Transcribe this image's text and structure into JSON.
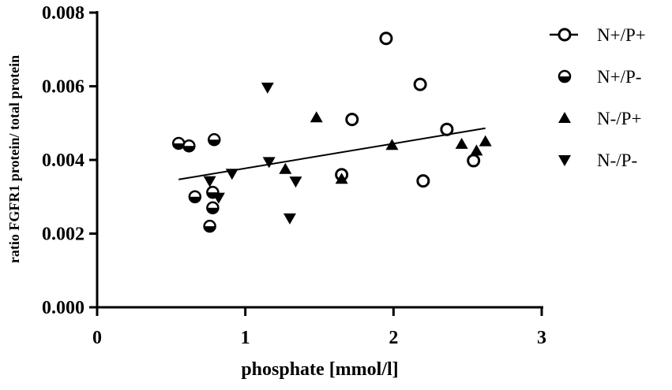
{
  "chart_data": {
    "type": "scatter",
    "xlabel": "phosphate [mmol/l]",
    "ylabel": "ratio FGFR1 protein/ total protein",
    "xlim": [
      0,
      3
    ],
    "ylim": [
      0,
      0.008
    ],
    "x_ticks": [
      "0",
      "1",
      "2",
      "3"
    ],
    "y_ticks": [
      "0.000",
      "0.002",
      "0.004",
      "0.006",
      "0.008"
    ],
    "grid": false,
    "legend_position": "right",
    "series": [
      {
        "name": "N+/P+",
        "marker": "open-circle",
        "points": [
          [
            1.65,
            0.0036
          ],
          [
            1.72,
            0.0051
          ],
          [
            1.95,
            0.0073
          ],
          [
            2.18,
            0.00605
          ],
          [
            2.2,
            0.00343
          ],
          [
            2.36,
            0.00483
          ],
          [
            2.54,
            0.00398
          ]
        ]
      },
      {
        "name": "N+/P-",
        "marker": "half-filled-circle",
        "points": [
          [
            0.55,
            0.00445
          ],
          [
            0.62,
            0.00438
          ],
          [
            0.66,
            0.003
          ],
          [
            0.76,
            0.0022
          ],
          [
            0.78,
            0.00312
          ],
          [
            0.78,
            0.0027
          ],
          [
            0.79,
            0.00455
          ]
        ]
      },
      {
        "name": "N-/P+",
        "marker": "triangle-up",
        "points": [
          [
            1.27,
            0.00375
          ],
          [
            1.48,
            0.00515
          ],
          [
            1.65,
            0.00348
          ],
          [
            1.99,
            0.0044
          ],
          [
            2.46,
            0.00443
          ],
          [
            2.56,
            0.00425
          ],
          [
            2.62,
            0.0045
          ]
        ]
      },
      {
        "name": "N-/P-",
        "marker": "triangle-down",
        "points": [
          [
            0.76,
            0.00343
          ],
          [
            0.82,
            0.00298
          ],
          [
            0.91,
            0.00363
          ],
          [
            1.15,
            0.00597
          ],
          [
            1.16,
            0.00395
          ],
          [
            1.3,
            0.00242
          ],
          [
            1.34,
            0.00342
          ]
        ]
      }
    ],
    "trendline": {
      "x": [
        0.55,
        2.62
      ],
      "y": [
        0.00347,
        0.00486
      ]
    }
  }
}
